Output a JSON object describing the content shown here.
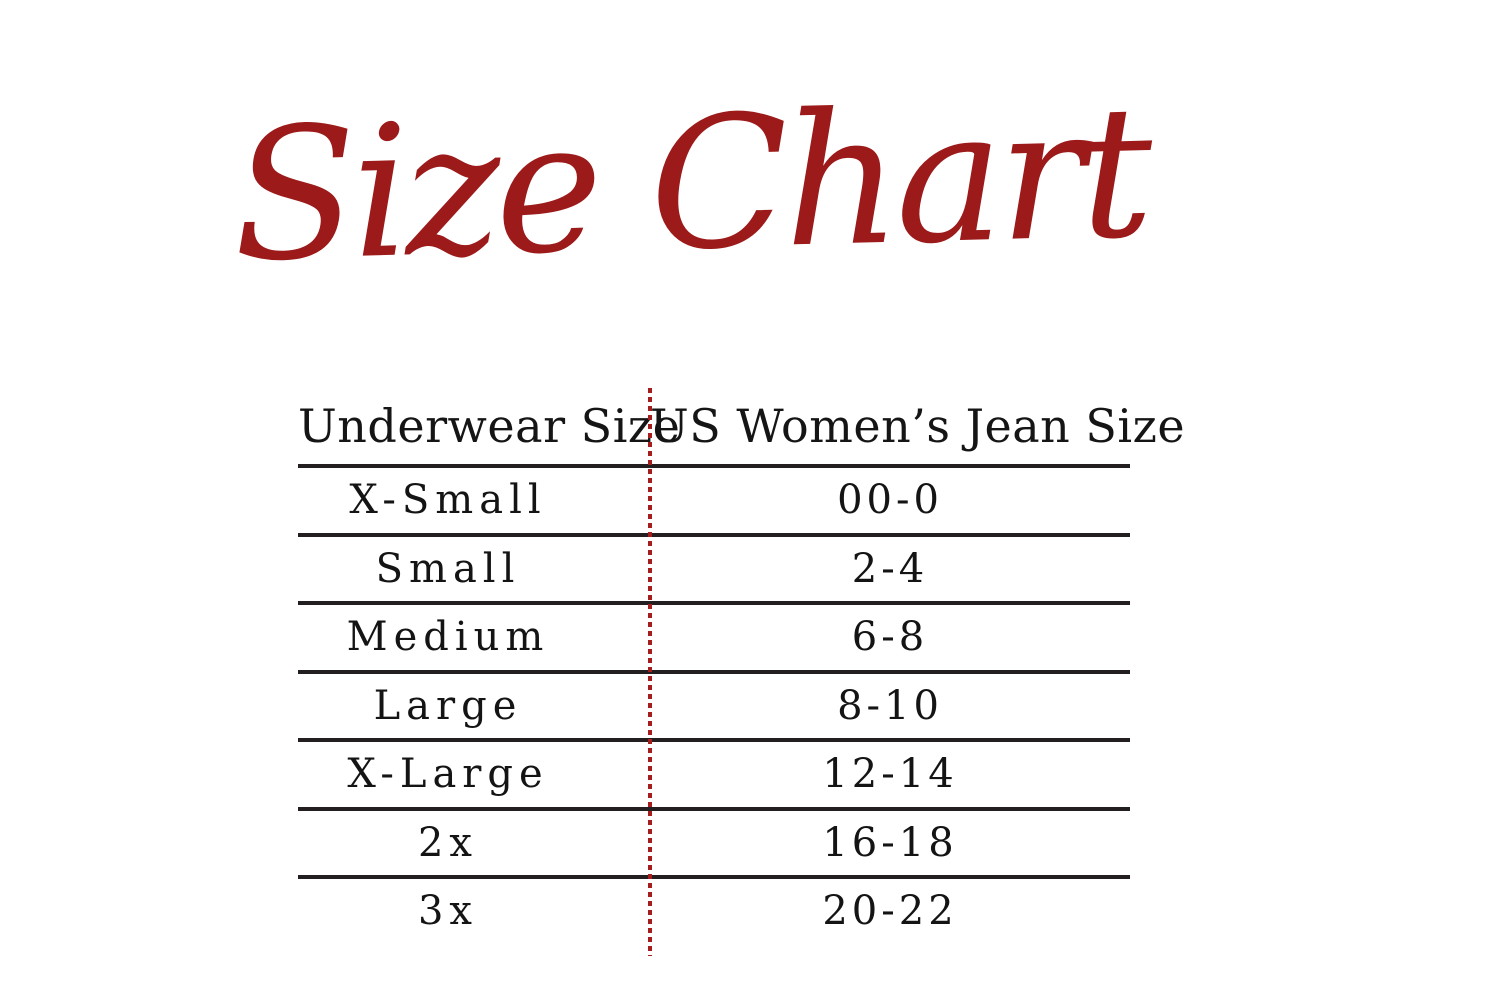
{
  "title": {
    "text": "Size Chart",
    "color": "#9c1a1a"
  },
  "table": {
    "columns": [
      "Underwear Size",
      "US Women’s Jean Size"
    ],
    "rows": [
      {
        "size": "X-Small",
        "jean": "00-0"
      },
      {
        "size": "Small",
        "jean": "2-4"
      },
      {
        "size": "Medium",
        "jean": "6-8"
      },
      {
        "size": "Large",
        "jean": "8-10"
      },
      {
        "size": "X-Large",
        "jean": "12-14"
      },
      {
        "size": "2x",
        "jean": "16-18"
      },
      {
        "size": "3x",
        "jean": "20-22"
      }
    ],
    "colors": {
      "rule": "#231f20",
      "dotted_divider": "#a51d1d",
      "text": "#141414"
    }
  },
  "chart_data": {
    "type": "table",
    "title": "Size Chart",
    "columns": [
      "Underwear Size",
      "US Women’s Jean Size"
    ],
    "rows": [
      [
        "X-Small",
        "00-0"
      ],
      [
        "Small",
        "2-4"
      ],
      [
        "Medium",
        "6-8"
      ],
      [
        "Large",
        "8-10"
      ],
      [
        "X-Large",
        "12-14"
      ],
      [
        "2x",
        "16-18"
      ],
      [
        "3x",
        "20-22"
      ]
    ]
  }
}
